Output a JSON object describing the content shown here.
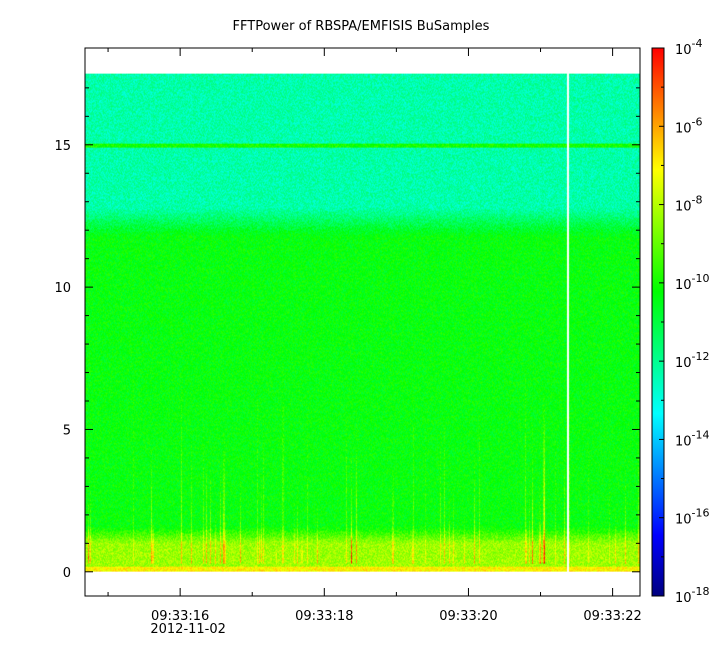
{
  "chart_data": {
    "type": "heatmap",
    "title": "FFTPower of RBSPA/EMFISIS  BuSamples",
    "xlabel": "",
    "ylabel": "",
    "x_ticks": [
      {
        "label": "09:33:16",
        "sub": "2012-11-02",
        "t": 16
      },
      {
        "label": "09:33:18",
        "sub": "",
        "t": 18
      },
      {
        "label": "09:33:20",
        "sub": "",
        "t": 20
      },
      {
        "label": "09:33:22",
        "sub": "",
        "t": 22
      }
    ],
    "xlim_seconds": [
      14.68,
      22.38
    ],
    "data_time_range_seconds": [
      14.68,
      22.38
    ],
    "data_gap_seconds": 21.37,
    "y_ticks": [
      0,
      5,
      10,
      15
    ],
    "ylim": [
      -0.85,
      18.4
    ],
    "data_y_range": [
      0,
      17.5
    ],
    "line_feature_y": 15,
    "colorbar": {
      "scale": "log",
      "range": [
        1e-18,
        0.0001
      ],
      "tick_labels": [
        {
          "base": "10",
          "exp": "-4"
        },
        {
          "base": "10",
          "exp": "-6"
        },
        {
          "base": "10",
          "exp": "-8"
        },
        {
          "base": "10",
          "exp": "-10"
        },
        {
          "base": "10",
          "exp": "-12"
        },
        {
          "base": "10",
          "exp": "-14"
        },
        {
          "base": "10",
          "exp": "-16"
        },
        {
          "base": "10",
          "exp": "-18"
        }
      ],
      "colormap": [
        "#00007f",
        "#0000ff",
        "#007fff",
        "#00ffff",
        "#00ff7f",
        "#00ff00",
        "#7fff00",
        "#ffff00",
        "#ff7f00",
        "#ff0000"
      ]
    },
    "bands": [
      {
        "y_from": 12.4,
        "y_to": 17.5,
        "log_power": -12.3
      },
      {
        "y_from": 1.2,
        "y_to": 12.4,
        "log_power": -10.3
      },
      {
        "y_from": 0.2,
        "y_to": 1.2,
        "log_power": -8.3
      },
      {
        "y_from": 0,
        "y_to": 0.2,
        "log_power": -7.0
      }
    ]
  }
}
